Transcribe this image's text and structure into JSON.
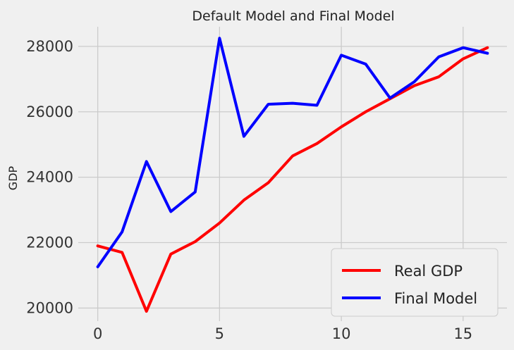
{
  "chart_data": {
    "type": "line",
    "title": "Default Model and Final Model",
    "xlabel": "",
    "ylabel": "GDP",
    "xlim": [
      -0.8,
      16.8
    ],
    "ylim": [
      19600,
      28600
    ],
    "xticks": [
      0,
      5,
      10,
      15
    ],
    "yticks": [
      20000,
      22000,
      24000,
      26000,
      28000
    ],
    "grid": true,
    "legend_position": "lower-right",
    "x": [
      0,
      1,
      2,
      3,
      4,
      5,
      6,
      7,
      8,
      9,
      10,
      11,
      12,
      13,
      14,
      15,
      16
    ],
    "series": [
      {
        "name": "Real GDP",
        "color": "#ff0000",
        "values": [
          21900,
          21700,
          19900,
          21650,
          22030,
          22600,
          23300,
          23830,
          24650,
          25030,
          25540,
          26000,
          26400,
          26800,
          27070,
          27620,
          27960
        ]
      },
      {
        "name": "Final Model",
        "color": "#0000ff",
        "values": [
          21260,
          22330,
          24480,
          22950,
          23550,
          28250,
          25250,
          26230,
          26260,
          26200,
          27730,
          27460,
          26420,
          26920,
          27680,
          27960,
          27790
        ]
      }
    ]
  }
}
